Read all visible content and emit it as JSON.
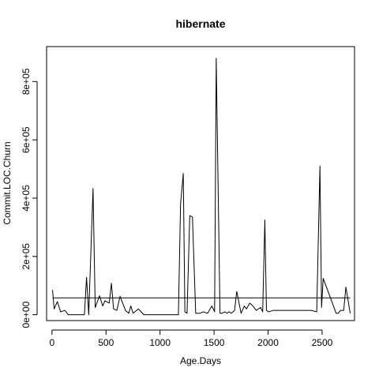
{
  "chart_data": {
    "type": "line",
    "title": "hibernate",
    "xlabel": "Age.Days",
    "ylabel": "Commit.LOC.Churn",
    "xlim": [
      -50,
      2800
    ],
    "ylim": [
      -20000,
      920000
    ],
    "xticks": [
      0,
      500,
      1000,
      1500,
      2000,
      2500
    ],
    "xtick_labels": [
      "0",
      "500",
      "1000",
      "1500",
      "2000",
      "2500"
    ],
    "yticks": [
      0,
      200000,
      400000,
      600000,
      800000
    ],
    "ytick_labels": [
      "0e+00",
      "2e+05",
      "4e+05",
      "6e+05",
      "8e+05"
    ],
    "grid": false,
    "legend": "none",
    "line_color": "#000000",
    "series": [
      {
        "values_x": [
          5,
          20,
          50,
          80,
          120,
          150,
          250,
          300,
          320,
          340,
          380,
          400,
          440,
          470,
          490,
          530,
          550,
          570,
          600,
          630,
          680,
          710,
          730,
          750,
          800,
          850,
          900,
          950,
          1000,
          1050,
          1100,
          1130,
          1170,
          1190,
          1215,
          1230,
          1250,
          1275,
          1300,
          1330,
          1370,
          1400,
          1440,
          1480,
          1505,
          1520,
          1555,
          1570,
          1600,
          1620,
          1640,
          1660,
          1690,
          1710,
          1750,
          1780,
          1800,
          1830,
          1860,
          1890,
          1930,
          1950,
          1970,
          1985,
          2005,
          2050,
          2100,
          2200,
          2300,
          2400,
          2450,
          2480,
          2495,
          2510,
          2630,
          2650,
          2670,
          2700,
          2720,
          2760
        ],
        "values_y": [
          85000,
          20000,
          45000,
          10000,
          15000,
          0,
          0,
          0,
          128000,
          0,
          433000,
          25000,
          65000,
          30000,
          48000,
          40000,
          108000,
          20000,
          15000,
          63000,
          15000,
          5000,
          30000,
          5000,
          20000,
          0,
          0,
          0,
          0,
          0,
          0,
          0,
          0,
          380000,
          485000,
          10000,
          5000,
          340000,
          335000,
          5000,
          5000,
          10000,
          5000,
          30000,
          10000,
          880000,
          5000,
          5000,
          10000,
          5000,
          10000,
          5000,
          15000,
          80000,
          5000,
          30000,
          20000,
          40000,
          30000,
          15000,
          25000,
          10000,
          325000,
          15000,
          10000,
          15000,
          15000,
          15000,
          15000,
          15000,
          10000,
          510000,
          25000,
          125000,
          5000,
          5000,
          15000,
          15000,
          95000,
          5000
        ]
      }
    ],
    "reference_lines": [
      {
        "x": [
          5,
          2760
        ],
        "y": [
          58000,
          58000
        ]
      }
    ]
  }
}
